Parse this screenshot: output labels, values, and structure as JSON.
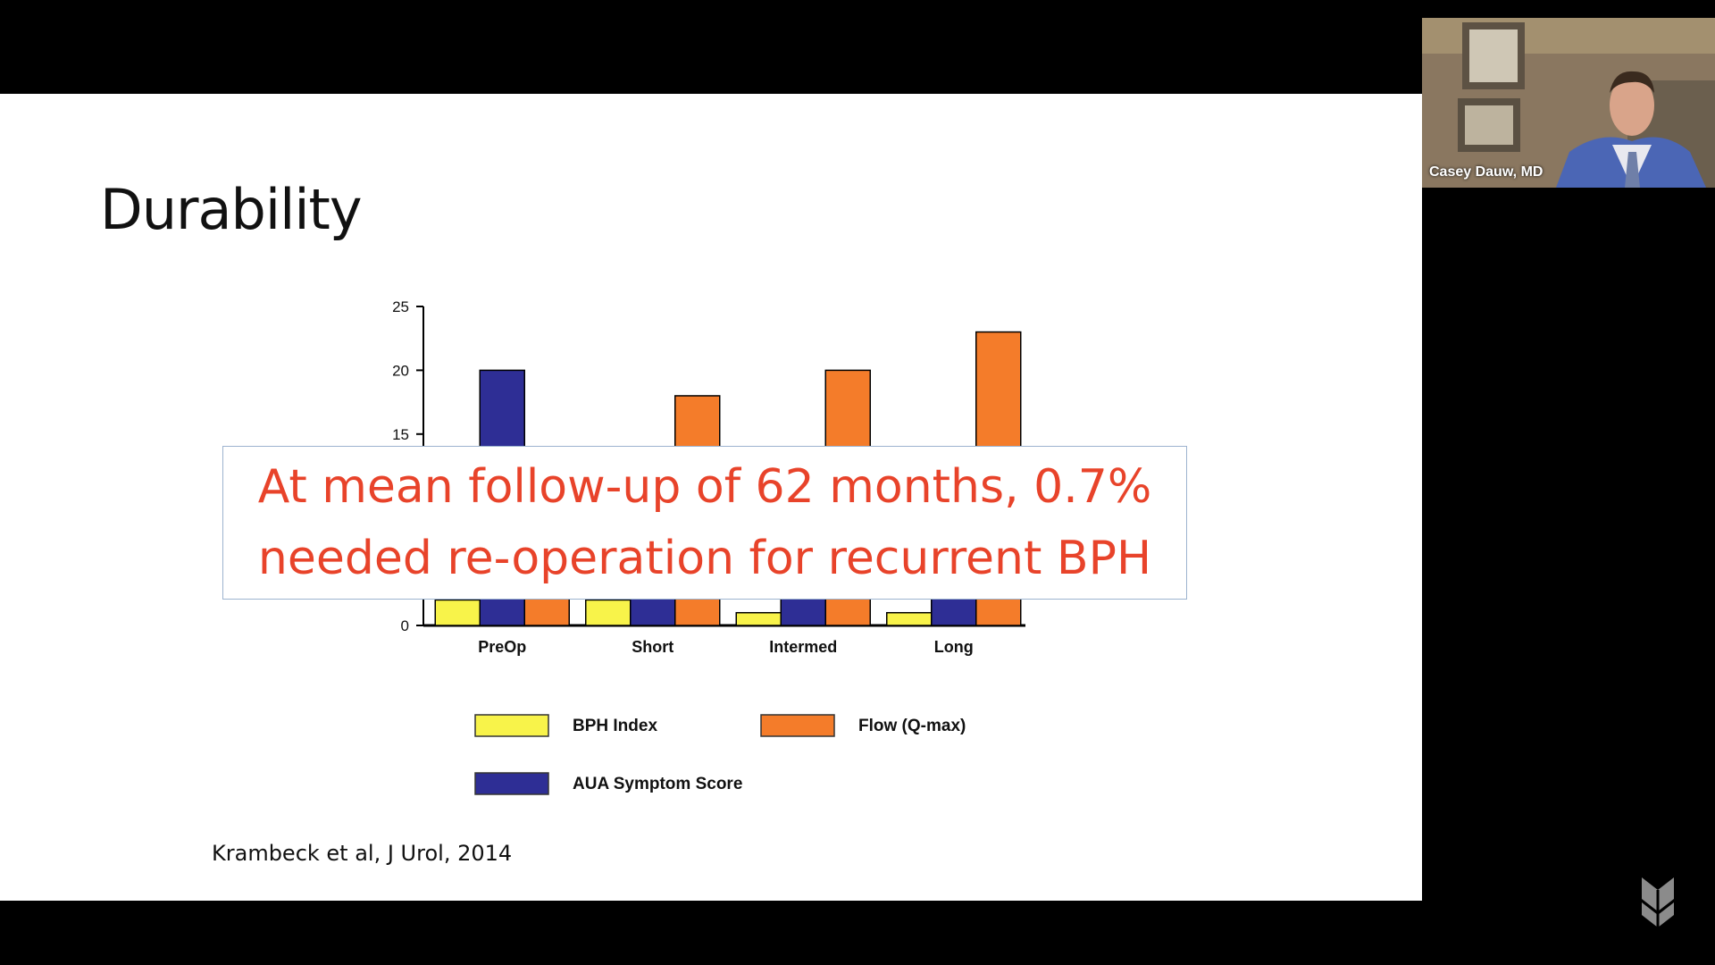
{
  "slide": {
    "title": "Durability",
    "callout_lines": [
      "At mean follow-up of 62 months, 0.7%",
      "needed re-operation for recurrent BPH"
    ],
    "citation": "Krambeck et al, J Urol, 2014"
  },
  "webcam": {
    "presenter_name": "Casey Dauw, MD"
  },
  "chart_data": {
    "type": "bar",
    "categories": [
      "PreOp",
      "Short",
      "Intermed",
      "Long"
    ],
    "series": [
      {
        "name": "BPH Index",
        "color": "#f8f34a",
        "values": [
          2,
          2,
          1,
          1
        ]
      },
      {
        "name": "AUA Symptom Score",
        "color": "#2e2e95",
        "values": [
          20,
          3,
          3,
          3
        ]
      },
      {
        "name": "Flow (Q-max)",
        "color": "#f47c2a",
        "values": [
          5,
          18,
          20,
          23
        ]
      }
    ],
    "ylim": [
      0,
      25
    ],
    "yticks_visible": [
      0,
      15,
      20,
      25
    ],
    "legend": "bottom",
    "grid": false
  },
  "colors": {
    "callout_text": "#e8432a",
    "callout_border": "#9db3cf",
    "slide_bg": "#ffffff"
  }
}
